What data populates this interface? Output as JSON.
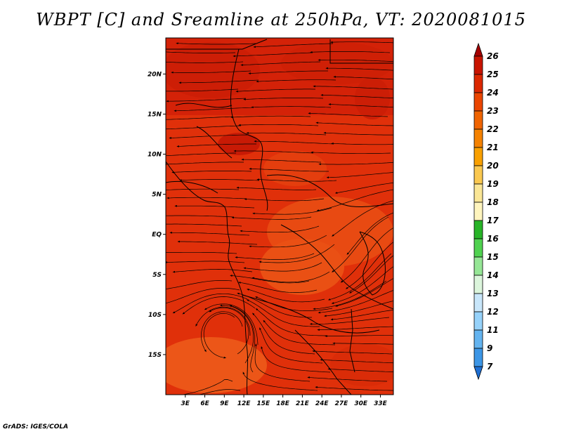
{
  "title": "WBPT [C] and Sreamline at 250hPa, VT: 2020081015",
  "credit": "GrADS: IGES/COLA",
  "map": {
    "lat_labels": [
      {
        "text": "20N",
        "lat": 20
      },
      {
        "text": "15N",
        "lat": 15
      },
      {
        "text": "10N",
        "lat": 10
      },
      {
        "text": "5N",
        "lat": 5
      },
      {
        "text": "EQ",
        "lat": 0
      },
      {
        "text": "5S",
        "lat": -5
      },
      {
        "text": "10S",
        "lat": -10
      },
      {
        "text": "15S",
        "lat": -15
      }
    ],
    "lon_labels": [
      {
        "text": "3E",
        "lon": 3
      },
      {
        "text": "6E",
        "lon": 6
      },
      {
        "text": "9E",
        "lon": 9
      },
      {
        "text": "12E",
        "lon": 12
      },
      {
        "text": "15E",
        "lon": 15
      },
      {
        "text": "18E",
        "lon": 18
      },
      {
        "text": "21E",
        "lon": 21
      },
      {
        "text": "24E",
        "lon": 24
      },
      {
        "text": "27E",
        "lon": 27
      },
      {
        "text": "30E",
        "lon": 30
      },
      {
        "text": "33E",
        "lon": 33
      }
    ],
    "extent": {
      "lon_min": 0,
      "lon_max": 35,
      "lat_min": -20,
      "lat_max": 24.5
    }
  },
  "colorbar": {
    "labels": [
      "26",
      "25",
      "24",
      "23",
      "22",
      "21",
      "20",
      "19",
      "18",
      "17",
      "16",
      "15",
      "14",
      "13",
      "12",
      "11",
      "9",
      "7"
    ],
    "colors": [
      "#a50000",
      "#c81400",
      "#dc2800",
      "#eb4600",
      "#f06400",
      "#f58200",
      "#f9a000",
      "#fac850",
      "#fae696",
      "#fff5be",
      "#28b428",
      "#50d250",
      "#96e696",
      "#dcf5dc",
      "#c8e6fa",
      "#96d2fa",
      "#64b4f0",
      "#3c96e6",
      "#1e6ed2"
    ]
  }
}
